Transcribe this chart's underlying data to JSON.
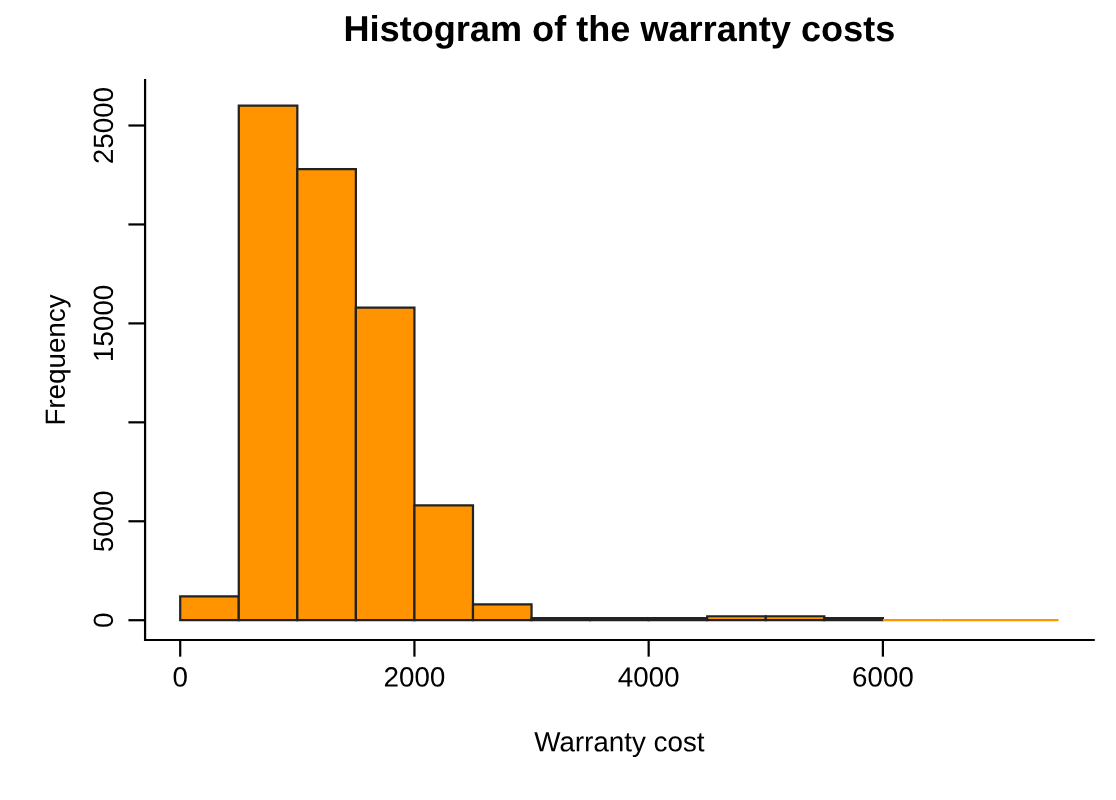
{
  "chart_data": {
    "type": "histogram",
    "title": "Histogram of the warranty costs",
    "xlabel": "Warranty cost",
    "ylabel": "Frequency",
    "bins": [
      0,
      500,
      1000,
      1500,
      2000,
      2500,
      3000,
      3500,
      4000,
      4500,
      5000,
      5500,
      6000,
      6500,
      7000,
      7500
    ],
    "values": [
      1200,
      26000,
      22800,
      15800,
      5800,
      800,
      100,
      100,
      100,
      200,
      200,
      100,
      0,
      0,
      0
    ],
    "color": "#ff9400",
    "xlim": [
      -300,
      7800
    ],
    "xticks": [
      0,
      2000,
      4000,
      6000
    ],
    "ylim": [
      -1000,
      27300
    ],
    "yticks": [
      0,
      5000,
      {
        "value": 10000,
        "label": null
      },
      15000,
      {
        "value": 20000,
        "label": null
      },
      25000
    ],
    "grid": false,
    "legend": false
  }
}
